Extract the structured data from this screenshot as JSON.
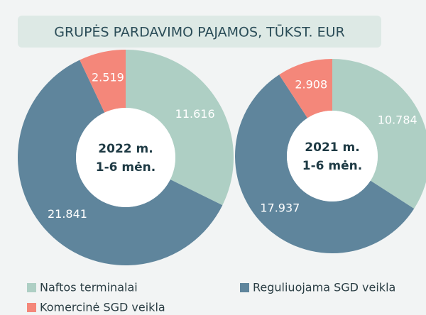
{
  "title": "GRUPĖS PARDAVIMO PAJAMOS, TŪKST. EUR",
  "chart_data": [
    {
      "type": "pie",
      "center_label": [
        "2022 m.",
        "1-6 mėn."
      ],
      "categories": [
        "Naftos terminalai",
        "Reguliuojama SGD veikla",
        "Komercinė SGD veikla"
      ],
      "values": [
        11.616,
        21.841,
        2.519
      ],
      "colors": [
        "#aecfc4",
        "#5f859c",
        "#f4877a"
      ]
    },
    {
      "type": "pie",
      "center_label": [
        "2021 m.",
        "1-6 mėn."
      ],
      "categories": [
        "Naftos terminalai",
        "Reguliuojama SGD veikla",
        "Komercinė SGD veikla"
      ],
      "values": [
        10.784,
        17.937,
        2.908
      ],
      "colors": [
        "#aecfc4",
        "#5f859c",
        "#f4877a"
      ]
    }
  ]
}
